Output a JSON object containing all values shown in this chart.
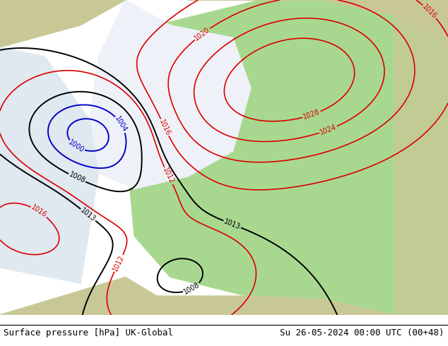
{
  "title_left": "Surface pressure [hPa] UK-Global",
  "title_right": "Su 26-05-2024 00:00 UTC (00+48)",
  "title_fontsize": 9,
  "bg_color": "#ffffff",
  "ocean_color": "#e0e8f0",
  "land_color": "#c8c896",
  "green_color": "#a8d890",
  "sea_dark": "#b8ccd8",
  "contour_red": "#dd0000",
  "contour_blue": "#0000cc",
  "contour_black": "#000000"
}
